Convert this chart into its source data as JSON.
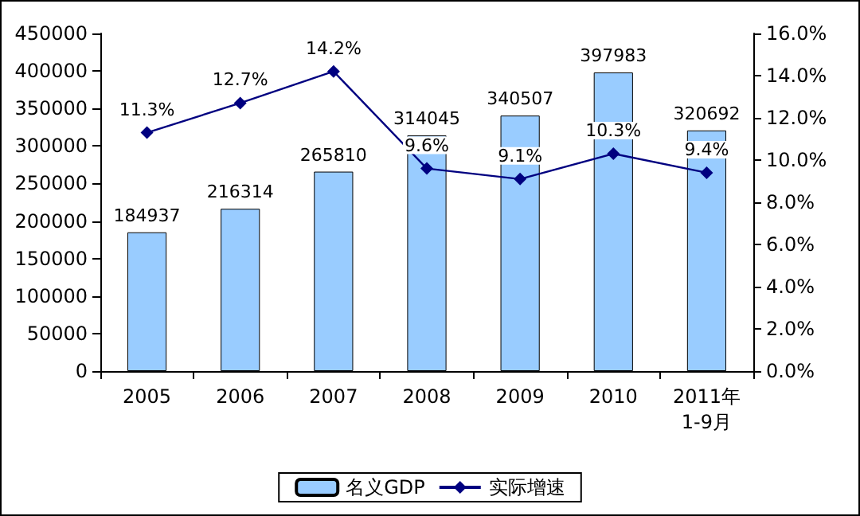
{
  "chart_data": {
    "type": "bar",
    "categories": [
      "2005",
      "2006",
      "2007",
      "2008",
      "2009",
      "2010",
      "2011年\n1-9月"
    ],
    "series": [
      {
        "name": "名义GDP",
        "color": "#99ccff",
        "values": [
          184937,
          216314,
          265810,
          314045,
          340507,
          397983,
          320692
        ],
        "value_labels": [
          "184937",
          "216314",
          "265810",
          "314045",
          "340507",
          "397983",
          "320692"
        ]
      },
      {
        "name": "实际增速",
        "type": "line",
        "axis": "y2",
        "color": "#000080",
        "marker": "diamond",
        "values": [
          11.3,
          12.7,
          14.2,
          9.6,
          9.1,
          10.3,
          9.4
        ],
        "value_labels": [
          "11.3%",
          "12.7%",
          "14.2%",
          "9.6%",
          "9.1%",
          "10.3%",
          "9.4%"
        ]
      }
    ],
    "ylim": [
      0,
      450000
    ],
    "yticks": [
      0,
      50000,
      100000,
      150000,
      200000,
      250000,
      300000,
      350000,
      400000,
      450000
    ],
    "y2lim": [
      0,
      16
    ],
    "y2ticks": [
      {
        "value": 0,
        "label": "0.0%"
      },
      {
        "value": 2,
        "label": "2.0%"
      },
      {
        "value": 4,
        "label": "4.0%"
      },
      {
        "value": 6,
        "label": "6.0%"
      },
      {
        "value": 8,
        "label": "8.0%"
      },
      {
        "value": 10,
        "label": "10.0%"
      },
      {
        "value": 12,
        "label": "12.0%"
      },
      {
        "value": 14,
        "label": "14.0%"
      },
      {
        "value": 16,
        "label": "16.0%"
      }
    ],
    "grid": false,
    "legend": "bottom"
  }
}
